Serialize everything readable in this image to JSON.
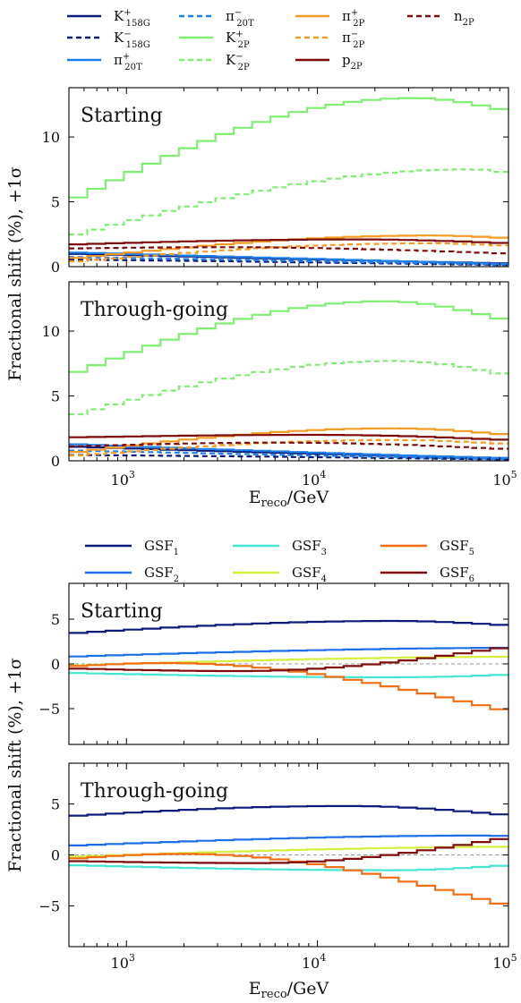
{
  "chart_data": [
    {
      "type": "line",
      "panel": "top",
      "xscale": "log",
      "xlim": [
        500,
        100000
      ],
      "ylim": [
        0,
        13.8
      ],
      "yticks": [
        0,
        5,
        10
      ],
      "xticks": [
        {
          "v": 1000,
          "label": "10^3"
        },
        {
          "v": 10000,
          "label": "10^4"
        },
        {
          "v": 100000,
          "label": "10^5"
        }
      ],
      "ylabel": "Fractional shift (%), +1σ",
      "xlabel": "E_reco/GeV",
      "legend": {
        "placement": "top",
        "columns": 4,
        "entries": [
          {
            "base": "K",
            "sup": "+",
            "sub": "158G",
            "color": "#0c1a7a",
            "dash": "solid"
          },
          {
            "base": "K",
            "sup": "−",
            "sub": "158G",
            "color": "#0c1a7a",
            "dash": "dashed"
          },
          {
            "base": "π",
            "sup": "+",
            "sub": "20T",
            "color": "#1d7fe8",
            "dash": "solid"
          },
          {
            "base": "π",
            "sup": "−",
            "sub": "20T",
            "color": "#1d7fe8",
            "dash": "dashed"
          },
          {
            "base": "K",
            "sup": "+",
            "sub": "2P",
            "color": "#7fee73",
            "dash": "solid"
          },
          {
            "base": "K",
            "sup": "−",
            "sub": "2P",
            "color": "#7fee73",
            "dash": "dashed"
          },
          {
            "base": "π",
            "sup": "+",
            "sub": "2P",
            "color": "#f59b22",
            "dash": "solid"
          },
          {
            "base": "π",
            "sup": "−",
            "sub": "2P",
            "color": "#f59b22",
            "dash": "dashed"
          },
          {
            "base": "p",
            "sup": "",
            "sub": "2P",
            "color": "#7e0b0b",
            "dash": "solid"
          },
          {
            "base": "n",
            "sup": "",
            "sub": "2P",
            "color": "#7e0b0b",
            "dash": "dashed"
          }
        ]
      },
      "subplots": [
        {
          "title": "Starting",
          "series": [
            {
              "name": "K+ 158G",
              "start": 1.0,
              "end": 0.25,
              "mid": 0.6,
              "color": "#0c1a7a",
              "dash": "solid"
            },
            {
              "name": "K- 158G",
              "start": 0.55,
              "end": 0.12,
              "mid": 0.35,
              "color": "#0c1a7a",
              "dash": "dashed"
            },
            {
              "name": "π+ 20T",
              "start": 1.1,
              "end": 0.2,
              "mid": 0.65,
              "color": "#1d7fe8",
              "dash": "solid"
            },
            {
              "name": "π- 20T",
              "start": 0.75,
              "end": 0.15,
              "mid": 0.45,
              "color": "#1d7fe8",
              "dash": "dashed"
            },
            {
              "name": "K+ 2P",
              "start": 5.0,
              "end": 12.0,
              "peak": 13.0,
              "peakLogX": 4.5,
              "color": "#7fee73",
              "dash": "solid"
            },
            {
              "name": "K- 2P",
              "start": 2.3,
              "end": 7.2,
              "peak": 7.5,
              "peakLogX": 4.8,
              "color": "#7fee73",
              "dash": "dashed"
            },
            {
              "name": "π+ 2P",
              "start": 0.6,
              "end": 2.2,
              "peak": 2.4,
              "peakLogX": 4.6,
              "color": "#f59b22",
              "dash": "solid"
            },
            {
              "name": "π- 2P",
              "start": 0.35,
              "end": 1.6,
              "peak": 1.8,
              "peakLogX": 4.6,
              "color": "#f59b22",
              "dash": "dashed"
            },
            {
              "name": "p 2P",
              "start": 1.7,
              "end": 1.8,
              "peak": 2.1,
              "peakLogX": 4.2,
              "color": "#7e0b0b",
              "dash": "solid"
            },
            {
              "name": "n 2P",
              "start": 1.4,
              "end": 1.0,
              "peak": 1.5,
              "peakLogX": 3.5,
              "color": "#7e0b0b",
              "dash": "dashed"
            }
          ]
        },
        {
          "title": "Through-going",
          "series": [
            {
              "name": "K+ 158G",
              "start": 1.1,
              "end": 0.2,
              "mid": 0.6,
              "color": "#0c1a7a",
              "dash": "solid"
            },
            {
              "name": "K- 158G",
              "start": 0.45,
              "end": 0.1,
              "mid": 0.3,
              "color": "#0c1a7a",
              "dash": "dashed"
            },
            {
              "name": "π+ 20T",
              "start": 1.3,
              "end": 0.2,
              "mid": 0.7,
              "color": "#1d7fe8",
              "dash": "solid"
            },
            {
              "name": "π- 20T",
              "start": 0.8,
              "end": 0.12,
              "mid": 0.45,
              "color": "#1d7fe8",
              "dash": "dashed"
            },
            {
              "name": "K+ 2P",
              "start": 6.6,
              "end": 10.8,
              "peak": 12.3,
              "peakLogX": 4.35,
              "color": "#7fee73",
              "dash": "solid"
            },
            {
              "name": "K- 2P",
              "start": 3.4,
              "end": 6.6,
              "peak": 7.7,
              "peakLogX": 4.4,
              "color": "#7fee73",
              "dash": "dashed"
            },
            {
              "name": "π+ 2P",
              "start": 0.6,
              "end": 2.0,
              "peak": 2.5,
              "peakLogX": 4.4,
              "color": "#f59b22",
              "dash": "solid"
            },
            {
              "name": "π- 2P",
              "start": 0.35,
              "end": 1.3,
              "peak": 1.6,
              "peakLogX": 4.4,
              "color": "#f59b22",
              "dash": "dashed"
            },
            {
              "name": "p 2P",
              "start": 1.8,
              "end": 1.6,
              "peak": 2.0,
              "peakLogX": 4.0,
              "color": "#7e0b0b",
              "dash": "solid"
            },
            {
              "name": "n 2P",
              "start": 1.1,
              "end": 0.9,
              "peak": 1.4,
              "peakLogX": 3.8,
              "color": "#7e0b0b",
              "dash": "dashed"
            }
          ]
        }
      ]
    },
    {
      "type": "line",
      "panel": "bottom",
      "xscale": "log",
      "xlim": [
        500,
        100000
      ],
      "ylim": [
        -9,
        9
      ],
      "yticks": [
        -5,
        0,
        5
      ],
      "xticks": [
        {
          "v": 1000,
          "label": "10^3"
        },
        {
          "v": 10000,
          "label": "10^4"
        },
        {
          "v": 100000,
          "label": "10^5"
        }
      ],
      "ylabel": "Fractional shift (%), +1σ",
      "xlabel": "E_reco/GeV",
      "legend": {
        "placement": "top",
        "columns": 3,
        "entries": [
          {
            "base": "GSF",
            "sup": "",
            "sub": "1",
            "color": "#0c1a7a",
            "dash": "solid"
          },
          {
            "base": "GSF",
            "sup": "",
            "sub": "2",
            "color": "#1d6fe8",
            "dash": "solid"
          },
          {
            "base": "GSF",
            "sup": "",
            "sub": "3",
            "color": "#46e6d2",
            "dash": "solid"
          },
          {
            "base": "GSF",
            "sup": "",
            "sub": "4",
            "color": "#d6ef3f",
            "dash": "solid"
          },
          {
            "base": "GSF",
            "sup": "",
            "sub": "5",
            "color": "#f06d12",
            "dash": "solid"
          },
          {
            "base": "GSF",
            "sup": "",
            "sub": "6",
            "color": "#7e0b0b",
            "dash": "solid"
          }
        ]
      },
      "subplots": [
        {
          "title": "Starting",
          "series": [
            {
              "name": "GSF1",
              "start": 3.4,
              "end": 4.3,
              "peak": 4.8,
              "peakLogX": 4.4,
              "color": "#0c1a7a",
              "dash": "solid"
            },
            {
              "name": "GSF2",
              "start": 0.8,
              "end": 1.8,
              "peak": 1.8,
              "peakLogX": 5.0,
              "color": "#1d6fe8",
              "dash": "solid"
            },
            {
              "name": "GSF3",
              "start": -1.0,
              "end": -1.2,
              "peak": -1.5,
              "peakLogX": 4.4,
              "color": "#46e6d2",
              "dash": "solid"
            },
            {
              "name": "GSF4",
              "start": -0.2,
              "end": 0.8,
              "peak": 0.8,
              "peakLogX": 5.0,
              "color": "#d6ef3f",
              "dash": "solid"
            },
            {
              "name": "GSF5",
              "start": -0.3,
              "end": -5.3,
              "peak": 0.1,
              "peakLogX": 3.2,
              "color": "#f06d12",
              "dash": "solid"
            },
            {
              "name": "GSF6",
              "start": -0.5,
              "end": 1.9,
              "peak": -0.8,
              "peakLogX": 3.6,
              "color": "#7e0b0b",
              "dash": "solid"
            }
          ]
        },
        {
          "title": "Through-going",
          "series": [
            {
              "name": "GSF1",
              "start": 3.8,
              "end": 3.9,
              "peak": 4.8,
              "peakLogX": 4.15,
              "color": "#0c1a7a",
              "dash": "solid"
            },
            {
              "name": "GSF2",
              "start": 0.9,
              "end": 1.8,
              "peak": 1.9,
              "peakLogX": 4.9,
              "color": "#1d6fe8",
              "dash": "solid"
            },
            {
              "name": "GSF3",
              "start": -1.0,
              "end": -1.0,
              "peak": -1.5,
              "peakLogX": 4.4,
              "color": "#46e6d2",
              "dash": "solid"
            },
            {
              "name": "GSF4",
              "start": -0.2,
              "end": 0.8,
              "peak": 0.8,
              "peakLogX": 5.0,
              "color": "#d6ef3f",
              "dash": "solid"
            },
            {
              "name": "GSF5",
              "start": -0.4,
              "end": -5.0,
              "peak": 0.1,
              "peakLogX": 3.3,
              "color": "#f06d12",
              "dash": "solid"
            },
            {
              "name": "GSF6",
              "start": -0.6,
              "end": 1.7,
              "peak": -0.8,
              "peakLogX": 3.7,
              "color": "#7e0b0b",
              "dash": "solid"
            }
          ]
        }
      ]
    }
  ]
}
